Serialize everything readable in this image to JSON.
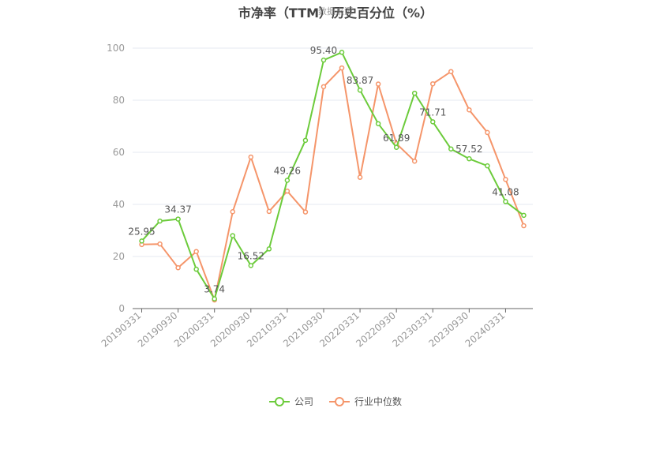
{
  "chart_data": {
    "type": "line",
    "title": "市净率（TTM）历史百分位（%）",
    "watermark": "数据来源",
    "xlabel": "",
    "ylabel": "",
    "ylim": [
      0,
      100
    ],
    "yticks": [
      0,
      20,
      40,
      60,
      80,
      100
    ],
    "xtick_labels": [
      "20190331",
      "20190930",
      "20200331",
      "20200930",
      "20210331",
      "20210930",
      "20220331",
      "20220930",
      "20230331",
      "20230930",
      "20240331"
    ],
    "grid": true,
    "legend_position": "bottom",
    "x": [
      "20190331",
      "20190630",
      "20190930",
      "20191231",
      "20200331",
      "20200630",
      "20200930",
      "20201231",
      "20210331",
      "20210630",
      "20210930",
      "20211231",
      "20220331",
      "20220630",
      "20220930",
      "20221231",
      "20230331",
      "20230630",
      "20230930",
      "20231231",
      "20240331",
      "20240630"
    ],
    "series": [
      {
        "name": "公司",
        "color": "#6ccb3b",
        "values": [
          25.95,
          33.6,
          34.37,
          15.1,
          3.74,
          28.0,
          16.52,
          22.9,
          49.26,
          64.6,
          95.4,
          98.4,
          83.87,
          71.0,
          61.89,
          82.7,
          71.71,
          61.3,
          57.52,
          54.8,
          41.08,
          35.8
        ],
        "labels": {
          "0": "25.95",
          "2": "34.37",
          "4": "3.74",
          "6": "16.52",
          "8": "49.26",
          "10": "95.40",
          "12": "83.87",
          "14": "61.89",
          "16": "71.71",
          "18": "57.52",
          "20": "41.08"
        }
      },
      {
        "name": "行业中位数",
        "color": "#f5956a",
        "values": [
          24.6,
          24.8,
          15.7,
          21.9,
          3.3,
          37.2,
          58.2,
          37.3,
          45.1,
          37.1,
          85.2,
          92.4,
          50.4,
          86.2,
          63.3,
          56.6,
          86.3,
          91.0,
          76.3,
          67.6,
          49.6,
          31.8
        ],
        "labels": {}
      }
    ]
  }
}
